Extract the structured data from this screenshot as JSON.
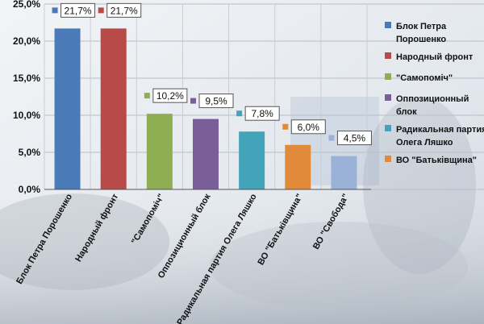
{
  "chart_data": {
    "type": "bar",
    "categories": [
      "Блок Петра Порошенко",
      "Народный фронт",
      "\"Самопоміч\"",
      "Оппозиционный блок",
      "Радикальная  партия Олега Ляшко",
      "ВО \"Батьківщина\"",
      "ВО \"Свобода\""
    ],
    "values": [
      21.7,
      21.7,
      10.2,
      9.5,
      7.8,
      6.0,
      4.5
    ],
    "data_labels": [
      "21,7%",
      "21,7%",
      "10,2%",
      "9,5%",
      "7,8%",
      "6,0%",
      "4,5%"
    ],
    "colors": [
      "#4a7ab8",
      "#b84a48",
      "#8fad52",
      "#7a5e9a",
      "#43a3b8",
      "#e08a3a",
      "#9ab2d8"
    ],
    "ylim": [
      0,
      25
    ],
    "yticks": [
      0,
      5,
      10,
      15,
      20,
      25
    ],
    "ytick_labels": [
      "0,0%",
      "5,0%",
      "10,0%",
      "15,0%",
      "20,0%",
      "25,0%"
    ],
    "grid": true,
    "legend": {
      "position": "right",
      "entries": [
        {
          "label": [
            "Блок Петра",
            "Порошенко"
          ],
          "color": "#4a7ab8"
        },
        {
          "label": [
            "Народный фронт"
          ],
          "color": "#b84a48"
        },
        {
          "label": [
            "\"Самопоміч\""
          ],
          "color": "#8fad52"
        },
        {
          "label": [
            "Оппозиционный",
            "блок"
          ],
          "color": "#7a5e9a"
        },
        {
          "label": [
            "Радикальная  партия",
            "Олега Ляшко"
          ],
          "color": "#43a3b8"
        },
        {
          "label": [
            "ВО \"Батьківщина\""
          ],
          "color": "#e08a3a"
        }
      ]
    }
  }
}
